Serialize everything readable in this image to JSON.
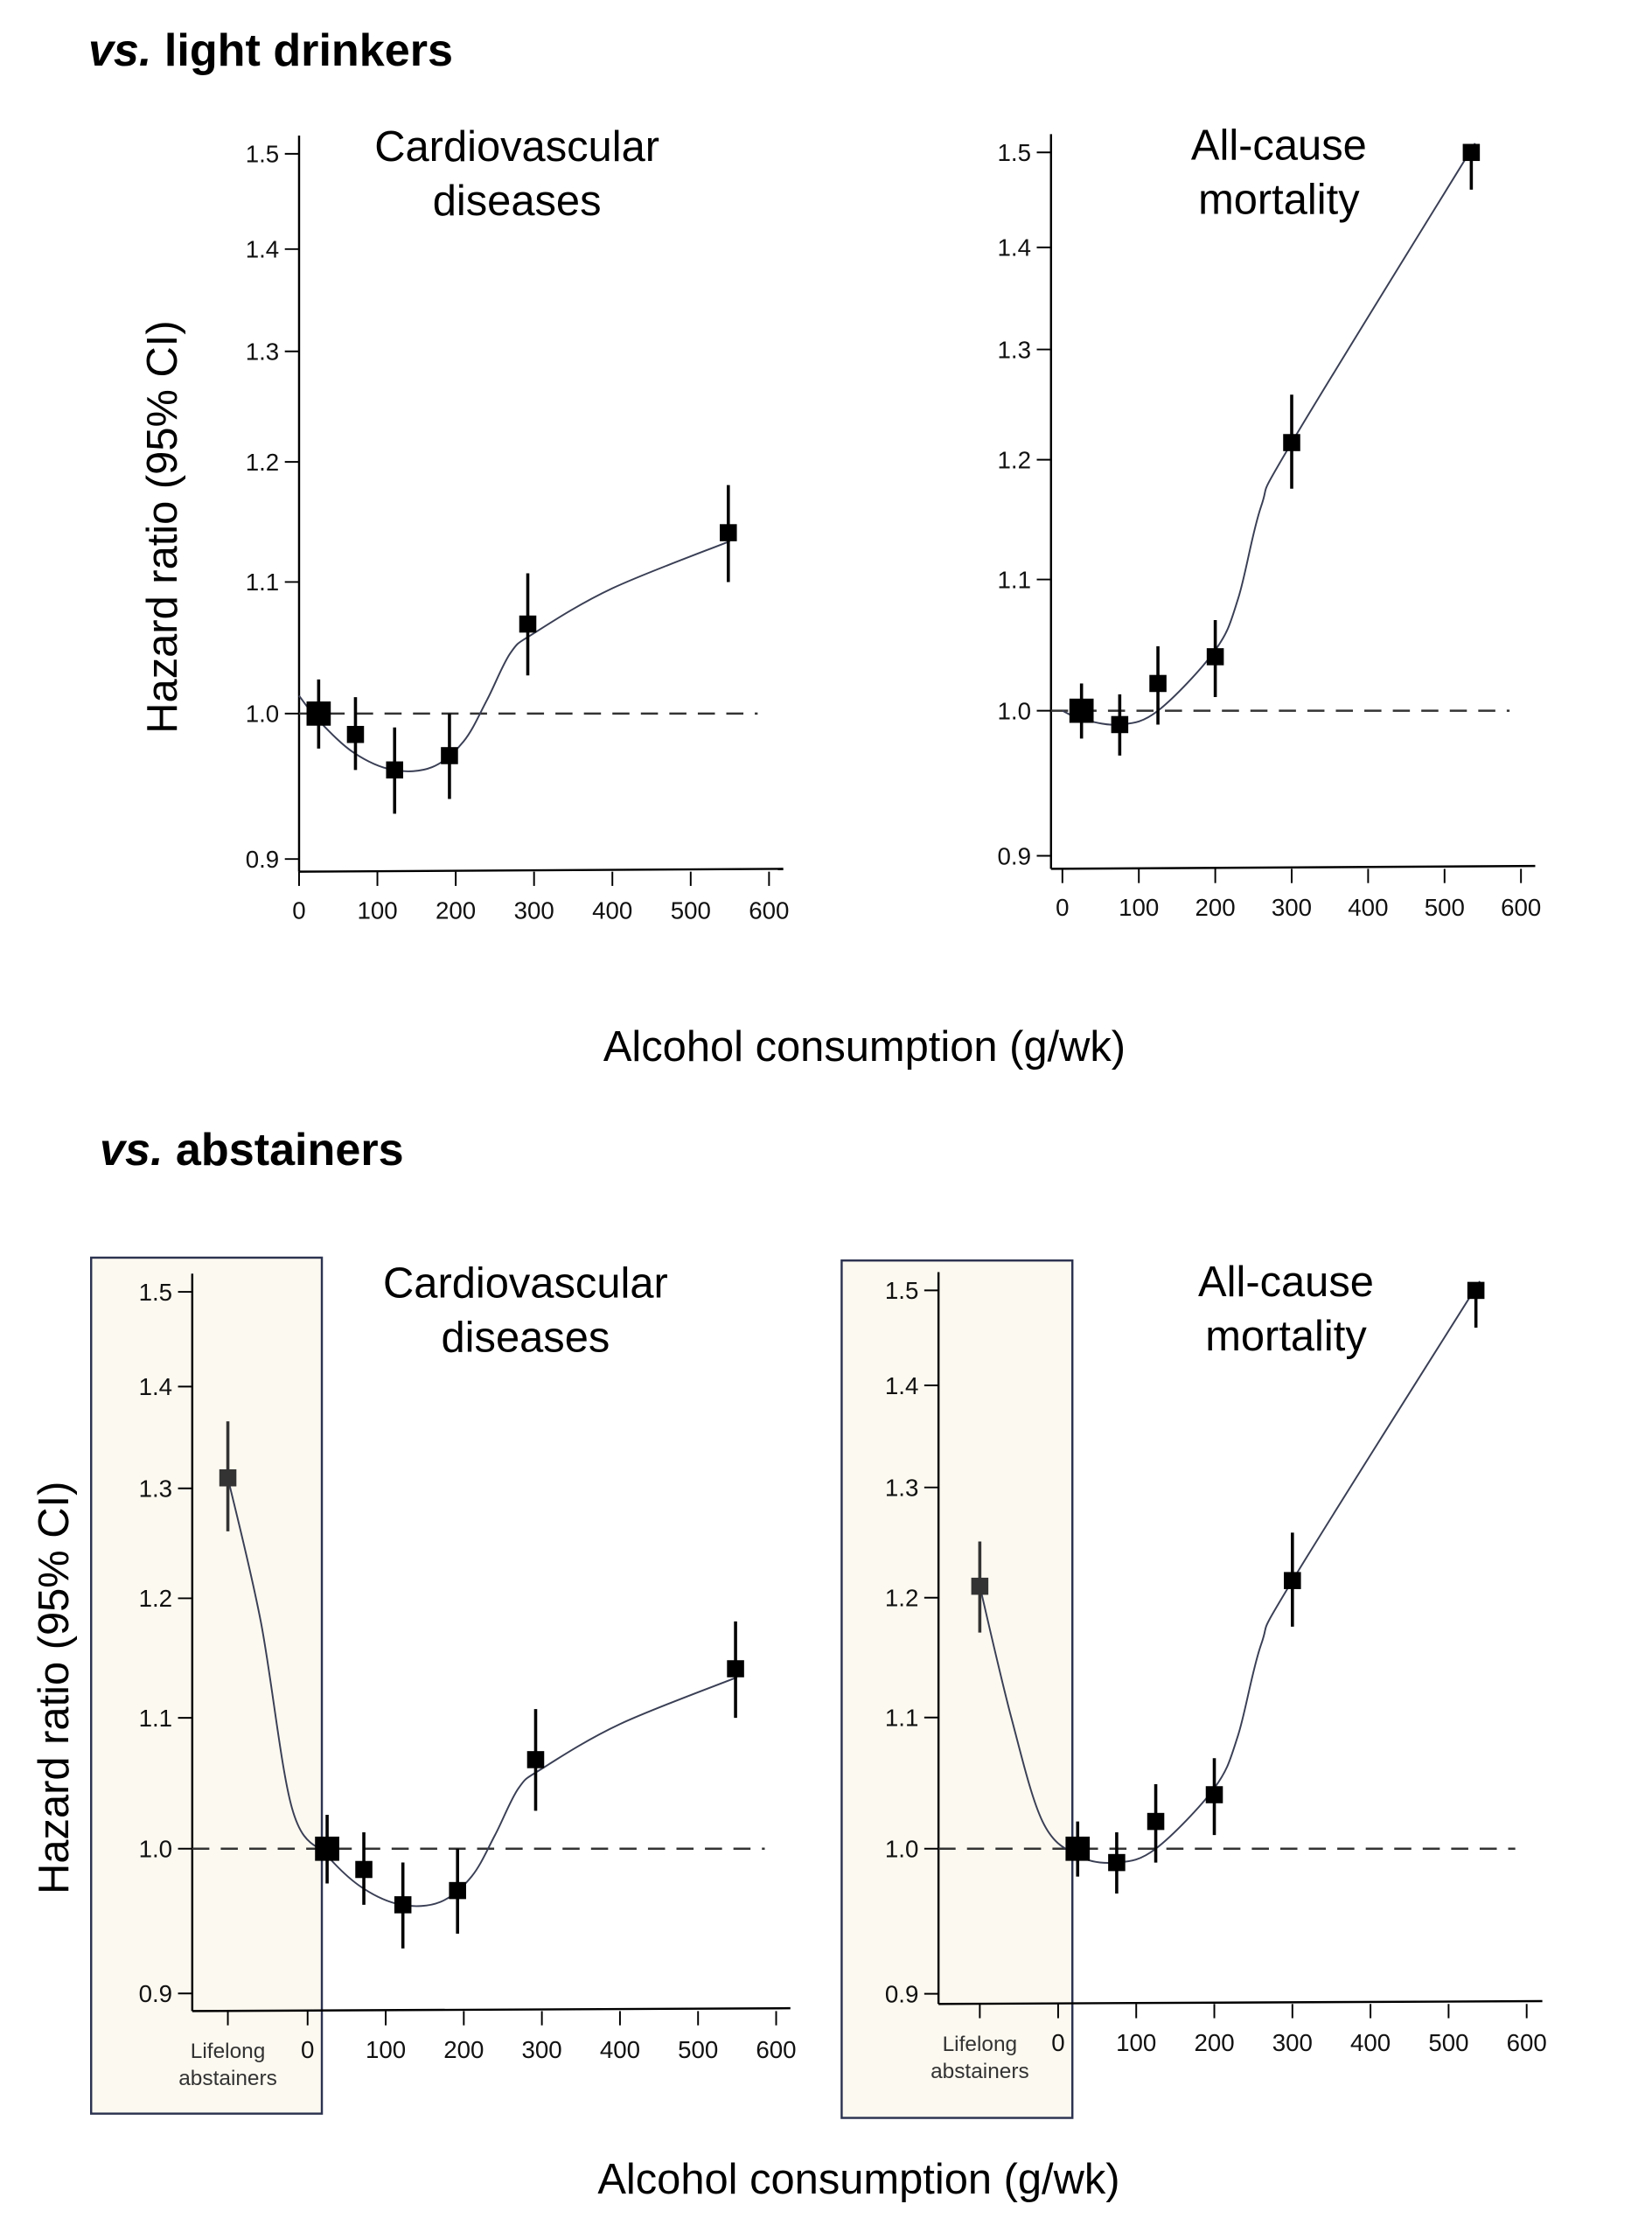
{
  "sections": [
    {
      "title_italic": "vs.",
      "title_rest": "light drinkers"
    },
    {
      "title_italic": "vs.",
      "title_rest": "abstainers"
    }
  ],
  "ylabel": "Hazard ratio (95% CI)",
  "xlabel": "Alcohol consumption (g/wk)",
  "lifelong_label": [
    "Lifelong",
    "abstainers"
  ],
  "chart_data": [
    {
      "type": "scatter",
      "title": [
        "Cardiovascular",
        "diseases"
      ],
      "section": "vs. light drinkers",
      "y_scale": "log",
      "ylim": [
        0.9,
        1.5
      ],
      "xlim": [
        0,
        600
      ],
      "yticks": [
        "0.9",
        "1.0",
        "1.1",
        "1.2",
        "1.3",
        "1.4",
        "1.5"
      ],
      "xticks": [
        "0",
        "100",
        "200",
        "300",
        "400",
        "500",
        "600"
      ],
      "reference_line": 1.0,
      "points": [
        {
          "x": 25,
          "y": 1.0,
          "lo": 0.975,
          "hi": 1.025
        },
        {
          "x": 72,
          "y": 0.985,
          "lo": 0.96,
          "hi": 1.012
        },
        {
          "x": 122,
          "y": 0.96,
          "lo": 0.93,
          "hi": 0.99
        },
        {
          "x": 192,
          "y": 0.97,
          "lo": 0.94,
          "hi": 1.0
        },
        {
          "x": 292,
          "y": 1.067,
          "lo": 1.028,
          "hi": 1.107
        },
        {
          "x": 548,
          "y": 1.14,
          "lo": 1.1,
          "hi": 1.18
        }
      ],
      "fit": [
        [
          0,
          1.013
        ],
        [
          25,
          0.995
        ],
        [
          70,
          0.972
        ],
        [
          120,
          0.96
        ],
        [
          170,
          0.962
        ],
        [
          210,
          0.98
        ],
        [
          240,
          1.01
        ],
        [
          270,
          1.045
        ],
        [
          300,
          1.06
        ],
        [
          400,
          1.095
        ],
        [
          550,
          1.133
        ]
      ]
    },
    {
      "type": "scatter",
      "title": [
        "All-cause",
        "mortality"
      ],
      "section": "vs. light drinkers",
      "y_scale": "log",
      "ylim": [
        0.9,
        1.5
      ],
      "xlim": [
        0,
        600
      ],
      "yticks": [
        "0.9",
        "1.0",
        "1.1",
        "1.2",
        "1.3",
        "1.4",
        "1.5"
      ],
      "xticks": [
        "0",
        "100",
        "200",
        "300",
        "400",
        "500",
        "600"
      ],
      "reference_line": 1.0,
      "points": [
        {
          "x": 25,
          "y": 1.0,
          "lo": 0.98,
          "hi": 1.02
        },
        {
          "x": 75,
          "y": 0.99,
          "lo": 0.968,
          "hi": 1.012
        },
        {
          "x": 125,
          "y": 1.02,
          "lo": 0.99,
          "hi": 1.048
        },
        {
          "x": 200,
          "y": 1.04,
          "lo": 1.01,
          "hi": 1.068
        },
        {
          "x": 300,
          "y": 1.215,
          "lo": 1.175,
          "hi": 1.258
        },
        {
          "x": 535,
          "y": 1.5,
          "lo": 1.46,
          "hi": 1.5
        }
      ],
      "fit": [
        [
          0,
          1.0
        ],
        [
          25,
          0.994
        ],
        [
          75,
          0.99
        ],
        [
          125,
          1.0
        ],
        [
          200,
          1.045
        ],
        [
          230,
          1.085
        ],
        [
          260,
          1.16
        ],
        [
          300,
          1.215
        ],
        [
          540,
          1.51
        ]
      ]
    },
    {
      "type": "scatter",
      "title": [
        "Cardiovascular",
        "diseases"
      ],
      "section": "vs. abstainers",
      "y_scale": "log",
      "ylim": [
        0.9,
        1.5
      ],
      "xlim": [
        0,
        600
      ],
      "yticks": [
        "0.9",
        "1.0",
        "1.1",
        "1.2",
        "1.3",
        "1.4",
        "1.5"
      ],
      "xticks": [
        "0",
        "100",
        "200",
        "300",
        "400",
        "500",
        "600"
      ],
      "reference_line": 1.0,
      "lifelong": {
        "y": 1.31,
        "lo": 1.26,
        "hi": 1.365
      },
      "points": [
        {
          "x": 25,
          "y": 1.0,
          "lo": 0.975,
          "hi": 1.025
        },
        {
          "x": 72,
          "y": 0.985,
          "lo": 0.96,
          "hi": 1.012
        },
        {
          "x": 122,
          "y": 0.96,
          "lo": 0.93,
          "hi": 0.99
        },
        {
          "x": 192,
          "y": 0.97,
          "lo": 0.94,
          "hi": 1.0
        },
        {
          "x": 292,
          "y": 1.067,
          "lo": 1.028,
          "hi": 1.107
        },
        {
          "x": 548,
          "y": 1.14,
          "lo": 1.1,
          "hi": 1.18
        }
      ],
      "fit": [
        [
          "lifelong",
          1.31
        ],
        [
          -60,
          1.18
        ],
        [
          -20,
          1.03
        ],
        [
          25,
          0.995
        ],
        [
          70,
          0.972
        ],
        [
          120,
          0.96
        ],
        [
          170,
          0.962
        ],
        [
          210,
          0.98
        ],
        [
          240,
          1.01
        ],
        [
          270,
          1.045
        ],
        [
          300,
          1.06
        ],
        [
          400,
          1.095
        ],
        [
          550,
          1.133
        ]
      ]
    },
    {
      "type": "scatter",
      "title": [
        "All-cause",
        "mortality"
      ],
      "section": "vs. abstainers",
      "y_scale": "log",
      "ylim": [
        0.9,
        1.5
      ],
      "xlim": [
        0,
        600
      ],
      "yticks": [
        "0.9",
        "1.0",
        "1.1",
        "1.2",
        "1.3",
        "1.4",
        "1.5"
      ],
      "xticks": [
        "0",
        "100",
        "200",
        "300",
        "400",
        "500",
        "600"
      ],
      "reference_line": 1.0,
      "lifelong": {
        "y": 1.21,
        "lo": 1.17,
        "hi": 1.25
      },
      "points": [
        {
          "x": 25,
          "y": 1.0,
          "lo": 0.98,
          "hi": 1.02
        },
        {
          "x": 75,
          "y": 0.99,
          "lo": 0.968,
          "hi": 1.012
        },
        {
          "x": 125,
          "y": 1.02,
          "lo": 0.99,
          "hi": 1.048
        },
        {
          "x": 200,
          "y": 1.04,
          "lo": 1.01,
          "hi": 1.068
        },
        {
          "x": 300,
          "y": 1.215,
          "lo": 1.175,
          "hi": 1.258
        },
        {
          "x": 535,
          "y": 1.5,
          "lo": 1.46,
          "hi": 1.5
        }
      ],
      "fit": [
        [
          "lifelong",
          1.21
        ],
        [
          -60,
          1.1
        ],
        [
          -20,
          1.02
        ],
        [
          25,
          0.995
        ],
        [
          75,
          0.99
        ],
        [
          125,
          1.0
        ],
        [
          200,
          1.045
        ],
        [
          230,
          1.085
        ],
        [
          260,
          1.16
        ],
        [
          300,
          1.215
        ],
        [
          540,
          1.51
        ]
      ]
    }
  ],
  "colors": {
    "marker": "#000000",
    "fit_line": "#3a3f55",
    "box_fill": "#fcf9f0",
    "box_border": "#2c3350",
    "lifelong_marker": "#333333"
  }
}
